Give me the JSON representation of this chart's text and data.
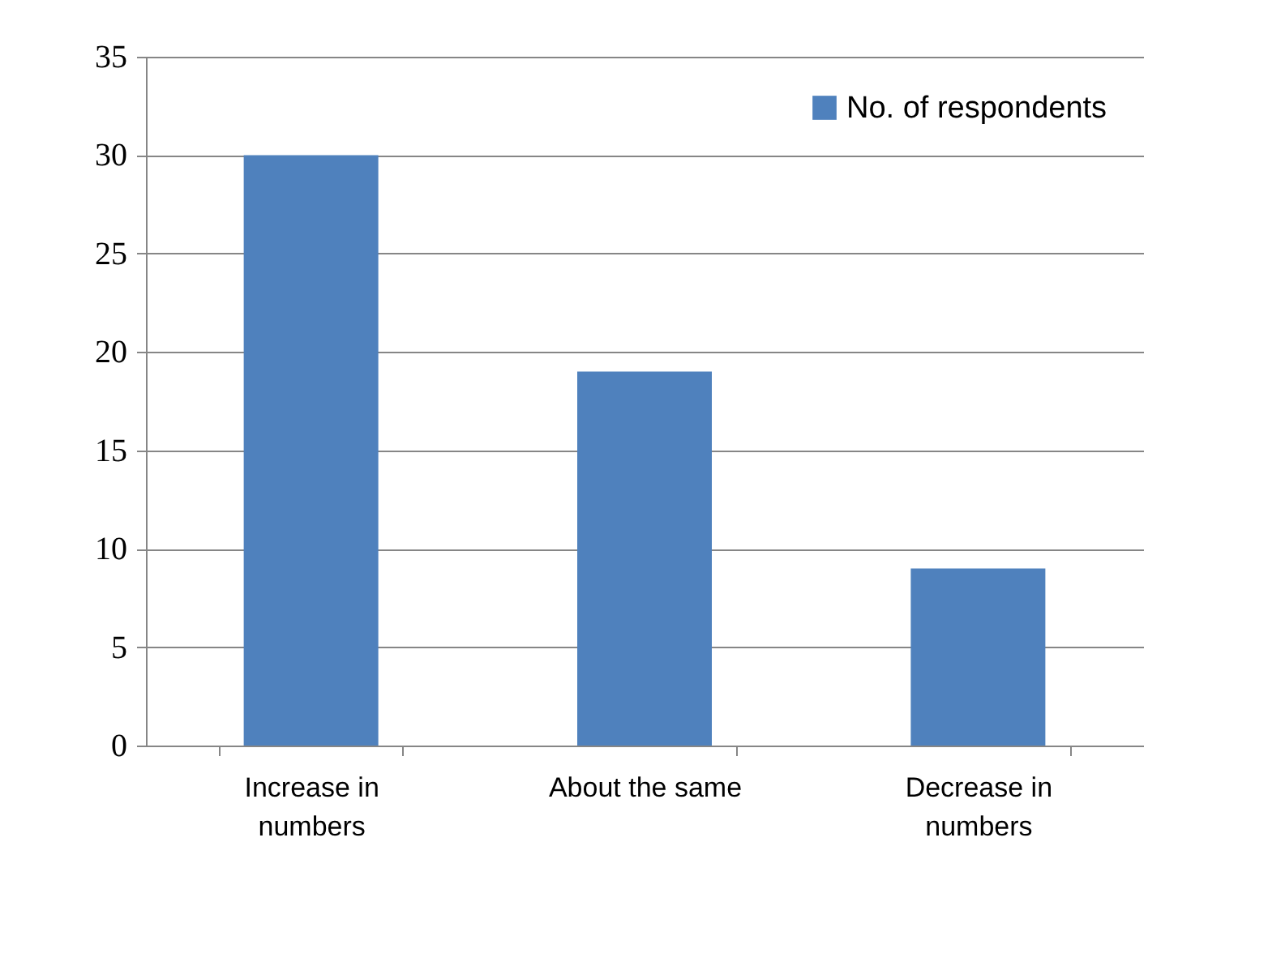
{
  "chart_data": {
    "type": "bar",
    "categories": [
      "Increase in numbers",
      "About the same",
      "Decrease in numbers"
    ],
    "series": [
      {
        "name": "No. of respondents",
        "color": "#4f81bd",
        "values": [
          30,
          19,
          9
        ]
      }
    ],
    "ylim": [
      0,
      35
    ],
    "yticks": [
      0,
      5,
      10,
      15,
      20,
      25,
      30,
      35
    ],
    "grid": "y",
    "legend": "top right"
  }
}
